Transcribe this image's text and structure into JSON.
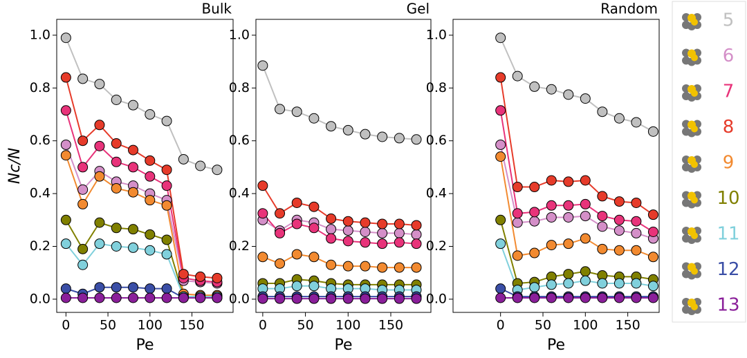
{
  "chart_data": [
    {
      "type": "line",
      "title": "Bulk",
      "x_label": "Pe",
      "y_label": "Nc/N",
      "xlim": [
        -11,
        199
      ],
      "xticks": [
        0,
        50,
        100,
        150
      ],
      "ylim": [
        -0.05,
        1.06
      ],
      "yticks": [
        {
          "value": 0,
          "label": "0.0"
        },
        0.2,
        0.4,
        0.6,
        0.8,
        {
          "value": 1,
          "label": "1.0"
        }
      ],
      "x": [
        0,
        20,
        40,
        60,
        80,
        100,
        120,
        140,
        160,
        180
      ],
      "series": [
        {
          "name": "5",
          "color": "#c0c0c0",
          "values": [
            0.99,
            0.835,
            0.815,
            0.755,
            0.735,
            0.7,
            0.675,
            0.53,
            0.505,
            0.49
          ]
        },
        {
          "name": "6",
          "color": "#d48fc8",
          "values": [
            0.585,
            0.415,
            0.485,
            0.445,
            0.43,
            0.4,
            0.375,
            0.07,
            0.065,
            0.06
          ]
        },
        {
          "name": "7",
          "color": "#e8337a",
          "values": [
            0.715,
            0.5,
            0.58,
            0.52,
            0.5,
            0.465,
            0.43,
            0.08,
            0.07,
            0.065
          ]
        },
        {
          "name": "8",
          "color": "#e63b2a",
          "values": [
            0.84,
            0.6,
            0.66,
            0.59,
            0.565,
            0.525,
            0.49,
            0.095,
            0.085,
            0.08
          ]
        },
        {
          "name": "9",
          "color": "#f28a30",
          "values": [
            0.545,
            0.36,
            0.465,
            0.42,
            0.405,
            0.375,
            0.355,
            0.02,
            0.015,
            0.015
          ]
        },
        {
          "name": "10",
          "color": "#808000",
          "values": [
            0.3,
            0.19,
            0.29,
            0.27,
            0.265,
            0.245,
            0.225,
            0.01,
            0.01,
            0.01
          ]
        },
        {
          "name": "11",
          "color": "#80d0dc",
          "values": [
            0.21,
            0.13,
            0.21,
            0.2,
            0.195,
            0.185,
            0.17,
            0.01,
            0.01,
            0.01
          ]
        },
        {
          "name": "12",
          "color": "#3a4ea6",
          "values": [
            0.04,
            0.02,
            0.045,
            0.045,
            0.045,
            0.04,
            0.04,
            0.005,
            0.005,
            0.005
          ]
        },
        {
          "name": "13",
          "color": "#8a1f9a",
          "values": [
            0.005,
            0.005,
            0.005,
            0.005,
            0.005,
            0.005,
            0.005,
            0.005,
            0.005,
            0.005
          ]
        }
      ]
    },
    {
      "type": "line",
      "title": "Gel",
      "x_label": "Pe",
      "xlim": [
        -8,
        197
      ],
      "xticks": [
        0,
        50,
        100,
        150
      ],
      "ylim": [
        -0.05,
        1.06
      ],
      "yticks": [
        {
          "value": 0,
          "label": "0.0"
        },
        0.2,
        0.4,
        0.6,
        0.8,
        {
          "value": 1,
          "label": "1.0"
        }
      ],
      "x": [
        0,
        20,
        40,
        60,
        80,
        100,
        120,
        140,
        160,
        180
      ],
      "series": [
        {
          "color": "#c0c0c0",
          "values": [
            0.885,
            0.72,
            0.71,
            0.685,
            0.655,
            0.64,
            0.625,
            0.615,
            0.61,
            0.605
          ]
        },
        {
          "color": "#d48fc8",
          "values": [
            0.3,
            0.26,
            0.3,
            0.29,
            0.265,
            0.26,
            0.255,
            0.25,
            0.25,
            0.245
          ]
        },
        {
          "color": "#e8337a",
          "values": [
            0.325,
            0.25,
            0.285,
            0.27,
            0.23,
            0.22,
            0.215,
            0.21,
            0.215,
            0.21
          ]
        },
        {
          "color": "#e63b2a",
          "values": [
            0.43,
            0.325,
            0.365,
            0.35,
            0.305,
            0.295,
            0.29,
            0.285,
            0.285,
            0.28
          ]
        },
        {
          "color": "#f28a30",
          "values": [
            0.16,
            0.135,
            0.17,
            0.16,
            0.13,
            0.125,
            0.125,
            0.12,
            0.12,
            0.12
          ]
        },
        {
          "color": "#808000",
          "values": [
            0.06,
            0.06,
            0.075,
            0.07,
            0.06,
            0.055,
            0.055,
            0.055,
            0.055,
            0.055
          ]
        },
        {
          "color": "#80d0dc",
          "values": [
            0.04,
            0.04,
            0.05,
            0.05,
            0.04,
            0.04,
            0.04,
            0.035,
            0.035,
            0.035
          ]
        },
        {
          "color": "#3a4ea6",
          "values": [
            0.01,
            0.01,
            0.01,
            0.01,
            0.01,
            0.01,
            0.01,
            0.01,
            0.01,
            0.01
          ]
        },
        {
          "color": "#8a1f9a",
          "values": [
            0.002,
            0.002,
            0.002,
            0.002,
            0.002,
            0.002,
            0.002,
            0.002,
            0.002,
            0.002
          ]
        }
      ]
    },
    {
      "type": "line",
      "title": "Random",
      "x_label": "Pe",
      "xlim": [
        -56,
        187
      ],
      "xticks": [
        0,
        50,
        100,
        150
      ],
      "ylim": [
        -0.05,
        1.06
      ],
      "yticks": [
        {
          "value": 0,
          "label": "0.0"
        },
        0.2,
        0.4,
        0.6,
        0.8,
        {
          "value": 1,
          "label": "1.0"
        }
      ],
      "x": [
        0,
        20,
        40,
        60,
        80,
        100,
        120,
        140,
        160,
        180
      ],
      "series": [
        {
          "color": "#c0c0c0",
          "values": [
            0.99,
            0.845,
            0.805,
            0.795,
            0.775,
            0.76,
            0.71,
            0.685,
            0.67,
            0.635
          ]
        },
        {
          "color": "#d48fc8",
          "values": [
            0.585,
            0.29,
            0.295,
            0.31,
            0.31,
            0.315,
            0.275,
            0.26,
            0.25,
            0.23
          ]
        },
        {
          "color": "#e8337a",
          "values": [
            0.715,
            0.325,
            0.33,
            0.355,
            0.355,
            0.36,
            0.315,
            0.3,
            0.295,
            0.255
          ]
        },
        {
          "color": "#e63b2a",
          "values": [
            0.84,
            0.425,
            0.425,
            0.45,
            0.445,
            0.45,
            0.39,
            0.37,
            0.365,
            0.32
          ]
        },
        {
          "color": "#f28a30",
          "values": [
            0.54,
            0.165,
            0.175,
            0.205,
            0.21,
            0.23,
            0.19,
            0.185,
            0.185,
            0.16
          ]
        },
        {
          "color": "#808000",
          "values": [
            0.3,
            0.06,
            0.065,
            0.085,
            0.095,
            0.105,
            0.09,
            0.085,
            0.085,
            0.075
          ]
        },
        {
          "color": "#80d0dc",
          "values": [
            0.21,
            0.035,
            0.045,
            0.055,
            0.06,
            0.07,
            0.06,
            0.06,
            0.06,
            0.05
          ]
        },
        {
          "color": "#3a4ea6",
          "values": [
            0.04,
            0.01,
            0.01,
            0.01,
            0.01,
            0.01,
            0.01,
            0.01,
            0.01,
            0.01
          ]
        },
        {
          "color": "#8a1f9a",
          "values": [
            0.005,
            0.005,
            0.005,
            0.005,
            0.005,
            0.005,
            0.005,
            0.005,
            0.005,
            0.005
          ]
        }
      ]
    }
  ]
}
